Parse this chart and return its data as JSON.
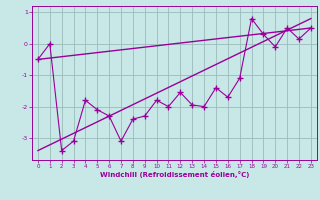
{
  "x": [
    0,
    1,
    2,
    3,
    4,
    5,
    6,
    7,
    8,
    9,
    10,
    11,
    12,
    13,
    14,
    15,
    16,
    17,
    18,
    19,
    20,
    21,
    22,
    23
  ],
  "y_scatter": [
    -0.5,
    0.0,
    -3.4,
    -3.1,
    -1.8,
    -2.1,
    -2.3,
    -3.1,
    -2.4,
    -2.3,
    -1.8,
    -2.0,
    -1.55,
    -1.95,
    -2.0,
    -1.4,
    -1.7,
    -1.1,
    0.8,
    0.3,
    -0.1,
    0.5,
    0.15,
    0.5
  ],
  "line1_x": [
    0,
    23
  ],
  "line1_y": [
    -0.5,
    0.5
  ],
  "line2_x": [
    0,
    23
  ],
  "line2_y": [
    -3.4,
    0.8
  ],
  "line_color": "#990099",
  "scatter_color": "#990099",
  "bg_color": "#c8e8e8",
  "grid_color": "#9bbaba",
  "axis_color": "#990099",
  "xlabel": "Windchill (Refroidissement éolien,°C)",
  "ylim": [
    -3.7,
    1.2
  ],
  "xlim": [
    -0.5,
    23.5
  ],
  "yticks": [
    -3,
    -2,
    -1,
    0,
    1
  ],
  "xticks": [
    0,
    1,
    2,
    3,
    4,
    5,
    6,
    7,
    8,
    9,
    10,
    11,
    12,
    13,
    14,
    15,
    16,
    17,
    18,
    19,
    20,
    21,
    22,
    23
  ]
}
